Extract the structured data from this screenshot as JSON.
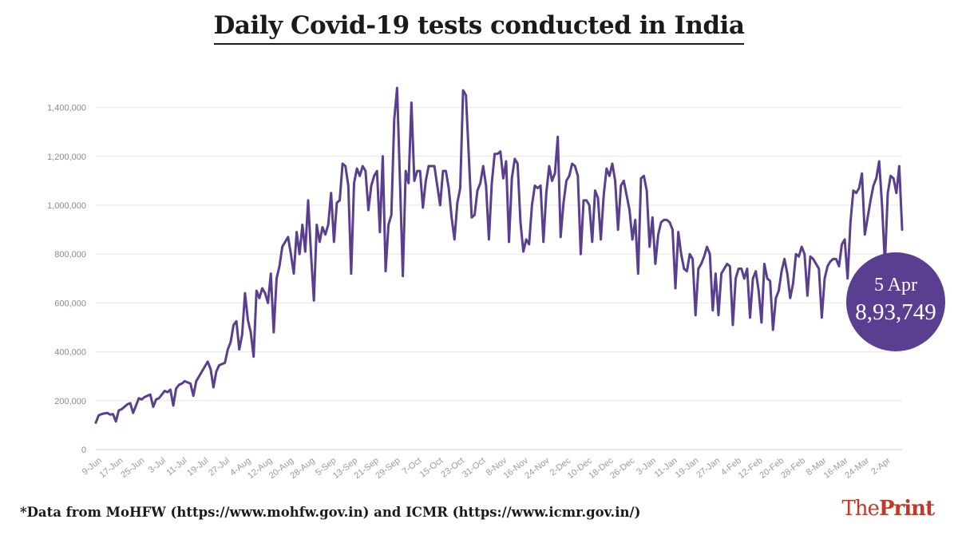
{
  "title": "Daily Covid-19 tests conducted in India",
  "footer": "*Data from MoHFW (https://www.mohfw.gov.in) and ICMR (https://www.icmr.gov.in/)",
  "brand": {
    "the": "The",
    "print": "Print"
  },
  "colors": {
    "line": "#5a3e8f",
    "bubble": "#5a3e8f",
    "grid": "#e6e6e6",
    "brand": "#c0392b"
  },
  "callout": {
    "date": "5 Apr",
    "value": "8,93,749"
  },
  "chart_data": {
    "type": "line",
    "title": "Daily Covid-19 tests conducted in India",
    "ylim": [
      0,
      1500000
    ],
    "yticks": [
      0,
      200000,
      400000,
      600000,
      800000,
      1000000,
      1200000,
      1400000
    ],
    "ytick_labels": [
      "0",
      "200,000",
      "400,000",
      "600,000",
      "800,000",
      "1,000,000",
      "1,200,000",
      "1,400,000"
    ],
    "xtick_labels": [
      "9-Jun",
      "17-Jun",
      "25-Jun",
      "3-Jul",
      "11-Jul",
      "19-Jul",
      "27-Jul",
      "4-Aug",
      "12-Aug",
      "20-Aug",
      "28-Aug",
      "5-Sep",
      "13-Sep",
      "21-Sep",
      "29-Sep",
      "7-Oct",
      "15-Oct",
      "23-Oct",
      "31-Oct",
      "8-Nov",
      "16-Nov",
      "24-Nov",
      "2-Dec",
      "10-Dec",
      "18-Dec",
      "26-Dec",
      "3-Jan",
      "11-Jan",
      "19-Jan",
      "27-Jan",
      "4-Feb",
      "12-Feb",
      "20-Feb",
      "28-Feb",
      "8-Mar",
      "16-Mar",
      "24-Mar",
      "2-Apr"
    ],
    "x_start": "9-Jun",
    "x_end": "5-Apr",
    "grid": true,
    "series": [
      {
        "values": [
          110000,
          140000,
          145000,
          148000,
          150000,
          143000,
          145000,
          115000,
          160000,
          165000,
          175000,
          185000,
          190000,
          150000,
          180000,
          210000,
          205000,
          215000,
          220000,
          225000,
          175000,
          205000,
          210000,
          225000,
          240000,
          235000,
          245000,
          180000,
          250000,
          265000,
          270000,
          280000,
          275000,
          270000,
          220000,
          280000,
          300000,
          320000,
          340000,
          360000,
          330000,
          255000,
          320000,
          345000,
          350000,
          355000,
          410000,
          440000,
          510000,
          525000,
          410000,
          470000,
          640000,
          530000,
          480000,
          380000,
          650000,
          620000,
          660000,
          640000,
          600000,
          720000,
          480000,
          700000,
          750000,
          830000,
          850000,
          870000,
          800000,
          720000,
          890000,
          800000,
          920000,
          810000,
          1020000,
          800000,
          610000,
          920000,
          850000,
          910000,
          880000,
          920000,
          1050000,
          850000,
          1010000,
          1020000,
          1170000,
          1160000,
          1080000,
          720000,
          1090000,
          1150000,
          1120000,
          1160000,
          1140000,
          980000,
          1080000,
          1120000,
          1140000,
          890000,
          1200000,
          730000,
          920000,
          960000,
          1350000,
          1480000,
          1100000,
          710000,
          1140000,
          1090000,
          1420000,
          1100000,
          1140000,
          1140000,
          990000,
          1100000,
          1160000,
          1160000,
          1160000,
          1080000,
          1000000,
          1140000,
          1140000,
          1070000,
          950000,
          860000,
          1010000,
          1070000,
          1470000,
          1450000,
          1200000,
          950000,
          960000,
          1060000,
          1090000,
          1160000,
          1080000,
          860000,
          1090000,
          1210000,
          1210000,
          1220000,
          1110000,
          1180000,
          850000,
          1110000,
          1190000,
          1170000,
          930000,
          810000,
          860000,
          840000,
          1000000,
          1080000,
          1070000,
          1080000,
          850000,
          1050000,
          1160000,
          1100000,
          1130000,
          1280000,
          870000,
          1010000,
          1100000,
          1120000,
          1170000,
          1160000,
          1120000,
          800000,
          1020000,
          1020000,
          1000000,
          850000,
          1060000,
          1030000,
          860000,
          1040000,
          1150000,
          1120000,
          1170000,
          1100000,
          900000,
          1080000,
          1100000,
          1040000,
          980000,
          860000,
          940000,
          720000,
          1110000,
          1120000,
          1060000,
          830000,
          950000,
          760000,
          880000,
          930000,
          940000,
          940000,
          930000,
          900000,
          660000,
          890000,
          800000,
          740000,
          730000,
          800000,
          780000,
          550000,
          740000,
          760000,
          790000,
          830000,
          800000,
          570000,
          720000,
          550000,
          720000,
          740000,
          760000,
          750000,
          510000,
          700000,
          740000,
          740000,
          700000,
          740000,
          540000,
          700000,
          730000,
          650000,
          520000,
          760000,
          700000,
          690000,
          490000,
          620000,
          650000,
          730000,
          780000,
          720000,
          620000,
          680000,
          800000,
          790000,
          830000,
          800000,
          630000,
          790000,
          780000,
          760000,
          740000,
          540000,
          700000,
          750000,
          770000,
          780000,
          780000,
          750000,
          840000,
          860000,
          700000,
          930000,
          1060000,
          1050000,
          1070000,
          1130000,
          880000,
          950000,
          1020000,
          1080000,
          1110000,
          1180000,
          1000000,
          760000,
          1050000,
          1120000,
          1110000,
          1050000,
          1160000,
          900000
        ]
      }
    ]
  }
}
